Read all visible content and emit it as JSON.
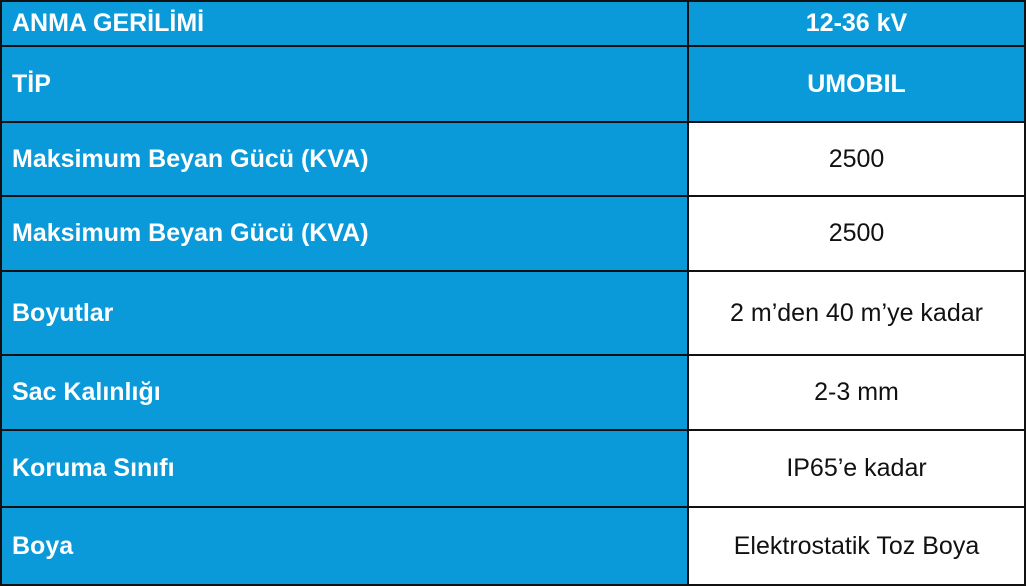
{
  "table": {
    "header": [
      [
        "ANMA GERİLİMİ",
        "12-36 kV"
      ],
      [
        "TİP",
        "UMOBIL"
      ]
    ],
    "rows": [
      [
        "Maksimum Beyan Gücü (KVA)",
        "2500"
      ],
      [
        "Maksimum Beyan Gücü (KVA)",
        "2500"
      ],
      [
        "Boyutlar",
        "2 m’den 40 m’ye kadar"
      ],
      [
        "Sac Kalınlığı",
        "2-3 mm"
      ],
      [
        "Koruma Sınıfı",
        "IP65’e kadar"
      ],
      [
        "Boya",
        "Elektrostatik Toz Boya"
      ]
    ]
  }
}
